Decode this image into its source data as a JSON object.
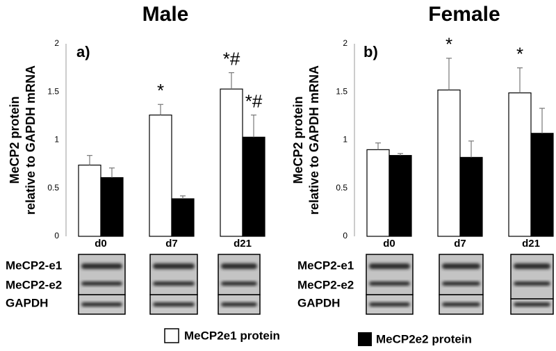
{
  "chart_data": [
    {
      "type": "bar",
      "title": "Male",
      "panel_label": "a)",
      "y_label": [
        "MeCP2 protein",
        "relative to GAPDH mRNA"
      ],
      "categories": [
        "d0",
        "d7",
        "d21"
      ],
      "series": [
        {
          "name": "MeCP2e1 protein",
          "color": "#ffffff",
          "values": [
            0.74,
            1.26,
            1.53
          ],
          "error": [
            0.1,
            0.11,
            0.17
          ],
          "annotations": [
            null,
            "*",
            "*#"
          ]
        },
        {
          "name": "MeCP2e2 protein",
          "color": "#000000",
          "values": [
            0.61,
            0.39,
            1.03
          ],
          "error": [
            0.1,
            0.03,
            0.23
          ],
          "annotations": [
            null,
            null,
            "*#"
          ]
        }
      ],
      "ylim": [
        0,
        2
      ],
      "yticks": [
        0,
        0.5,
        1,
        1.5,
        2
      ],
      "blot_labels": [
        "MeCP2-e1",
        "MeCP2-e2",
        "GAPDH"
      ]
    },
    {
      "type": "bar",
      "title": "Female",
      "panel_label": "b)",
      "y_label": [
        "MeCP2 protein",
        "relative to GAPDH mRNA"
      ],
      "categories": [
        "d0",
        "d7",
        "d21"
      ],
      "series": [
        {
          "color": "#ffffff",
          "values": [
            0.9,
            1.52,
            1.49
          ],
          "error": [
            0.07,
            0.33,
            0.26
          ],
          "annotations": [
            null,
            "*",
            "*"
          ]
        },
        {
          "color": "#000000",
          "values": [
            0.84,
            0.82,
            1.07
          ],
          "error": [
            0.02,
            0.17,
            0.26
          ],
          "annotations": [
            null,
            null,
            null
          ]
        }
      ],
      "ylim": [
        0,
        2
      ],
      "yticks": [
        0,
        0.5,
        1,
        1.5,
        2
      ],
      "blot_labels": [
        "MeCP2-e1",
        "MeCP2-e2",
        "GAPDH"
      ]
    }
  ]
}
